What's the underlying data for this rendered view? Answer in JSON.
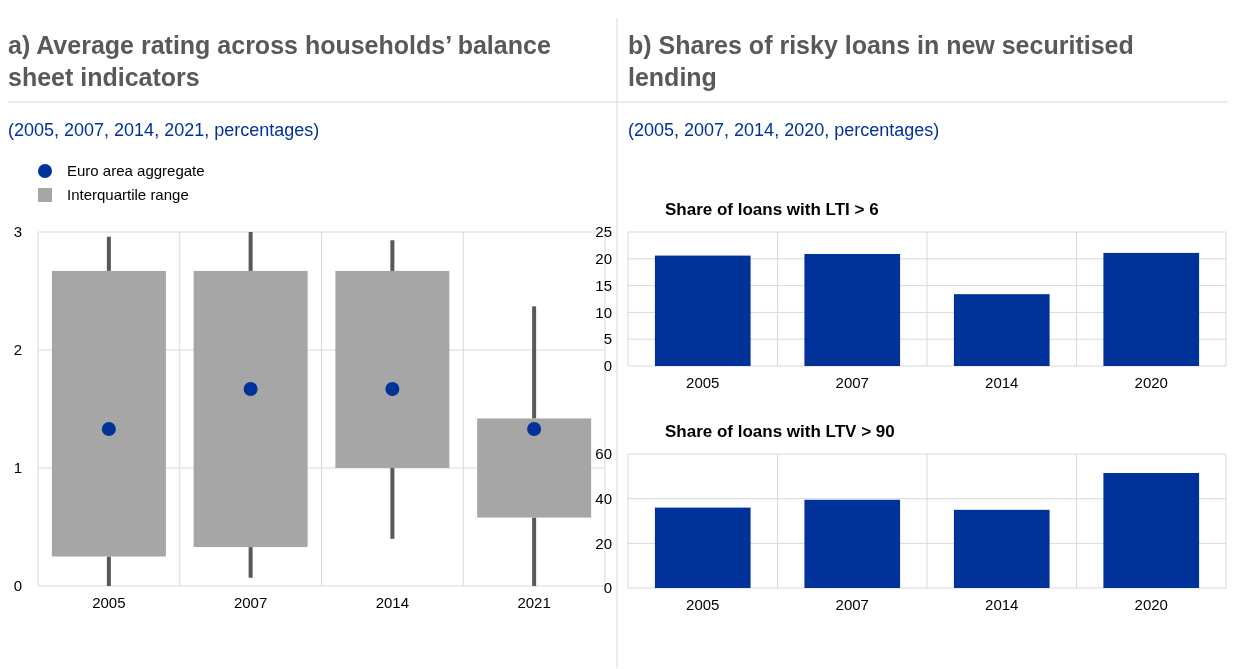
{
  "chart_data": [
    {
      "type": "box",
      "title": "a) Average rating across households’ balance sheet indicators",
      "subtitle": "(2005, 2007, 2014, 2021, percentages)",
      "categories": [
        "2005",
        "2007",
        "2014",
        "2021"
      ],
      "ylim": [
        0,
        3
      ],
      "yticks": [
        0,
        1,
        2,
        3
      ],
      "grid": true,
      "legend": "top left",
      "series": [
        {
          "type": "box",
          "name": "Interquartile range",
          "color": "#a6a6a6",
          "boxes": [
            {
              "low": 0,
              "q1": 0.25,
              "q3": 2.67,
              "high": 2.96
            },
            {
              "low": 0.07,
              "q1": 0.33,
              "q3": 2.67,
              "high": 3
            },
            {
              "low": 0.4,
              "q1": 1,
              "q3": 2.67,
              "high": 2.93
            },
            {
              "low": 0,
              "q1": 0.58,
              "q3": 1.42,
              "high": 2.37
            }
          ]
        },
        {
          "type": "scatter",
          "name": "Euro area aggregate",
          "color": "#003299",
          "marker": "circle",
          "values": [
            1.33,
            1.67,
            1.67,
            1.33
          ]
        }
      ]
    },
    {
      "type": "other",
      "title": "b) Shares of risky loans in new securitised lending",
      "subtitle": "(2005, 2007, 2014, 2020, percentages)"
    },
    {
      "type": "bar",
      "title": "Share of loans with LTI > 6",
      "categories": [
        "2005",
        "2007",
        "2014",
        "2020"
      ],
      "values": [
        20.6,
        20.9,
        13.4,
        21.1
      ],
      "color": "#003299",
      "ylim": [
        0,
        25
      ],
      "yticks": [
        0,
        5,
        10,
        15,
        20,
        25
      ],
      "grid": true
    },
    {
      "type": "bar",
      "title": "Share of loans with LTV > 90",
      "categories": [
        "2005",
        "2007",
        "2014",
        "2020"
      ],
      "values": [
        36,
        39.5,
        35,
        51.5
      ],
      "color": "#003299",
      "ylim": [
        0,
        60
      ],
      "yticks": [
        0,
        20,
        40,
        60
      ],
      "grid": true
    }
  ]
}
